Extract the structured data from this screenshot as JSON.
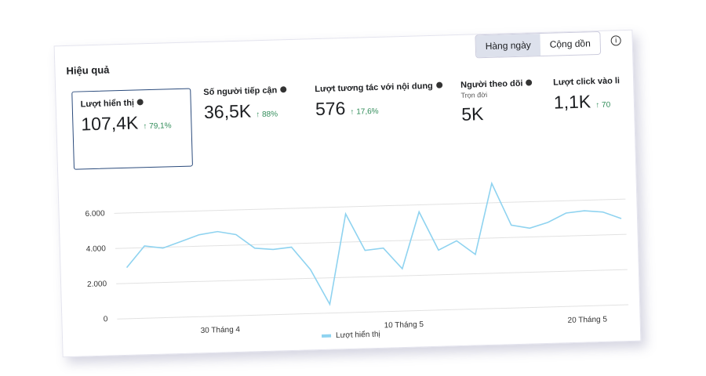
{
  "header": {
    "title": "Hiệu quả"
  },
  "toggle": {
    "options": [
      "Hàng ngày",
      "Cộng dồn"
    ],
    "active": 0
  },
  "metrics": [
    {
      "label": "Lượt hiển thị",
      "value": "107,4K",
      "change": "79,1%"
    },
    {
      "label": "Số người tiếp cận",
      "value": "36,5K",
      "change": "88%"
    },
    {
      "label": "Lượt tương tác với nội dung",
      "value": "576",
      "change": "17,6%"
    },
    {
      "label": "Người theo dõi",
      "sublabel": "Trọn đời",
      "value": "5K"
    },
    {
      "label": "Lượt click vào li",
      "value": "1,1K",
      "change": "70"
    }
  ],
  "chart_data": {
    "type": "line",
    "categories": [
      null,
      null,
      null,
      null,
      null,
      "30 Tháng 4",
      null,
      null,
      null,
      null,
      null,
      null,
      null,
      null,
      null,
      "10 Tháng 5",
      null,
      null,
      null,
      null,
      null,
      null,
      null,
      null,
      null,
      "20 Tháng 5",
      null,
      null
    ],
    "series": [
      {
        "name": "Lượt hiển thị",
        "color": "#8fd3f0",
        "values": [
          2900,
          4100,
          3950,
          4300,
          4650,
          4800,
          4600,
          3800,
          3700,
          3800,
          2500,
          500,
          5600,
          3500,
          3600,
          2400,
          5600,
          3400,
          3900,
          3100,
          7100,
          4700,
          4500,
          4800,
          5300,
          5400,
          5300,
          4900
        ]
      }
    ],
    "ylim": [
      0,
      8000
    ],
    "yticks": [
      0,
      {
        "value": 2000,
        "label": "2.000"
      },
      {
        "value": 4000,
        "label": "4.000"
      },
      {
        "value": 6000,
        "label": "6.000"
      }
    ],
    "grid": true
  }
}
